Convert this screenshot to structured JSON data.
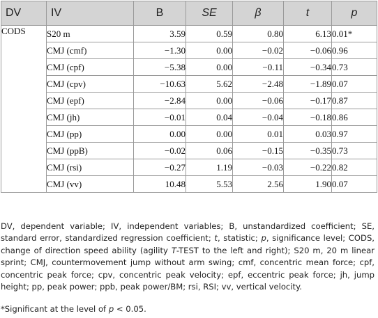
{
  "table": {
    "headers": [
      "DV",
      "IV",
      "B",
      "SE",
      "β",
      "t",
      "p"
    ],
    "dv": "CODS",
    "rows": [
      {
        "iv": "S20 m",
        "b": "3.59",
        "se": "0.59",
        "beta": "0.80",
        "t": "6.13",
        "p": "0.01*"
      },
      {
        "iv": "CMJ (cmf)",
        "b": "−1.30",
        "se": "0.00",
        "beta": "−0.02",
        "t": "−0.06",
        "p": "0.96"
      },
      {
        "iv": "CMJ (cpf)",
        "b": "−5.38",
        "se": "0.00",
        "beta": "−0.11",
        "t": "−0.34",
        "p": "0.73"
      },
      {
        "iv": "CMJ (cpv)",
        "b": "−10.63",
        "se": "5.62",
        "beta": "−2.48",
        "t": "−1.89",
        "p": "0.07"
      },
      {
        "iv": "CMJ (epf)",
        "b": "−2.84",
        "se": "0.00",
        "beta": "−0.06",
        "t": "−0.17",
        "p": "0.87"
      },
      {
        "iv": "CMJ (jh)",
        "b": "−0.01",
        "se": "0.04",
        "beta": "−0.04",
        "t": "−0.18",
        "p": "0.86"
      },
      {
        "iv": "CMJ (pp)",
        "b": "0.00",
        "se": "0.00",
        "beta": "0.01",
        "t": "0.03",
        "p": "0.97"
      },
      {
        "iv": "CMJ (ppB)",
        "b": "−0.02",
        "se": "0.06",
        "beta": "−0.15",
        "t": "−0.35",
        "p": "0.73"
      },
      {
        "iv": "CMJ (rsi)",
        "b": "−0.27",
        "se": "1.19",
        "beta": "−0.03",
        "t": "−0.22",
        "p": "0.82"
      },
      {
        "iv": "CMJ (vv)",
        "b": "10.48",
        "se": "5.53",
        "beta": "2.56",
        "t": "1.90",
        "p": "0.07"
      }
    ]
  },
  "footnote": {
    "p1": "DV, dependent variable; IV, independent variables; B, unstandardized coefficient; SE, standard error, standardized regression coefficient; ",
    "t_sym": "t",
    "p2": ", statistic; ",
    "p_sym": "p",
    "p3": ", significance level; CODS, change of direction speed ability (agility ",
    "t_sym2": "T",
    "p4": "-TEST to the left and right); S20 m, 20 m linear sprint; CMJ, countermovement jump without arm swing; cmf, concentric mean force; cpf, concentric peak force; cpv, concentric peak velocity; epf, eccentric peak force; jh, jump height; pp, peak power; ppb, peak power/BM; rsi, RSI; vv, vertical velocity.",
    "sig_a": "*Significant at the level of ",
    "sig_p": "p",
    "sig_b": " < 0.05."
  }
}
